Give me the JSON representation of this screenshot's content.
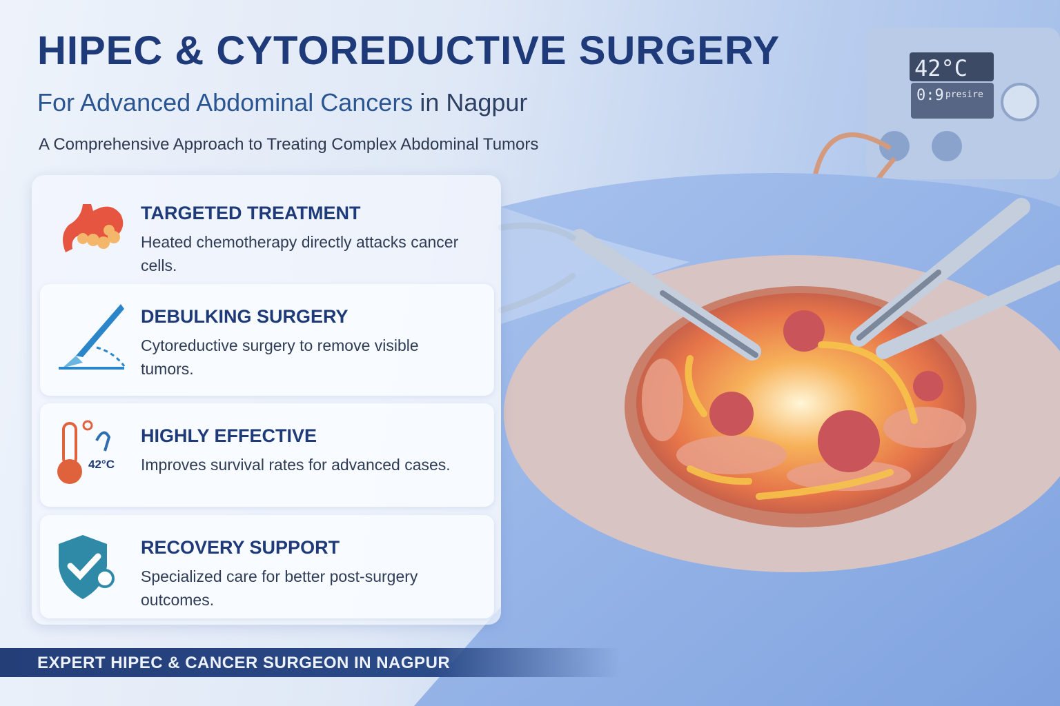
{
  "header": {
    "title": "HIPEC & CYTOREDUCTIVE SURGERY",
    "subtitle_main": "For Advanced Abdominal Cancers",
    "subtitle_loc": "in Nagpur",
    "tagline": "A Comprehensive Approach to Treating Complex Abdominal Tumors"
  },
  "features": [
    {
      "icon": "stomach-icon",
      "title": "TARGETED TREATMENT",
      "text": "Heated chemotherapy directly attacks cancer cells."
    },
    {
      "icon": "scalpel-icon",
      "title": "DEBULKING SURGERY",
      "text": "Cytoreductive surgery to remove visible tumors."
    },
    {
      "icon": "thermometer-icon",
      "title": "HIGHLY EFFECTIVE",
      "text": "Improves survival rates for advanced cases.",
      "icon_label": "42°C"
    },
    {
      "icon": "shield-check-icon",
      "title": "RECOVERY SUPPORT",
      "text": "Specialized care for better post-surgery outcomes."
    }
  ],
  "machine": {
    "temperature": "42°C",
    "readout": "0:9",
    "readout_label": "presire"
  },
  "banner": "EXPERT HIPEC & CANCER SURGEON IN NAGPUR",
  "colors": {
    "navy": "#1f3a78",
    "accent_blue": "#2a5591",
    "banner": "#243e78",
    "heat": "#f08a2a"
  }
}
